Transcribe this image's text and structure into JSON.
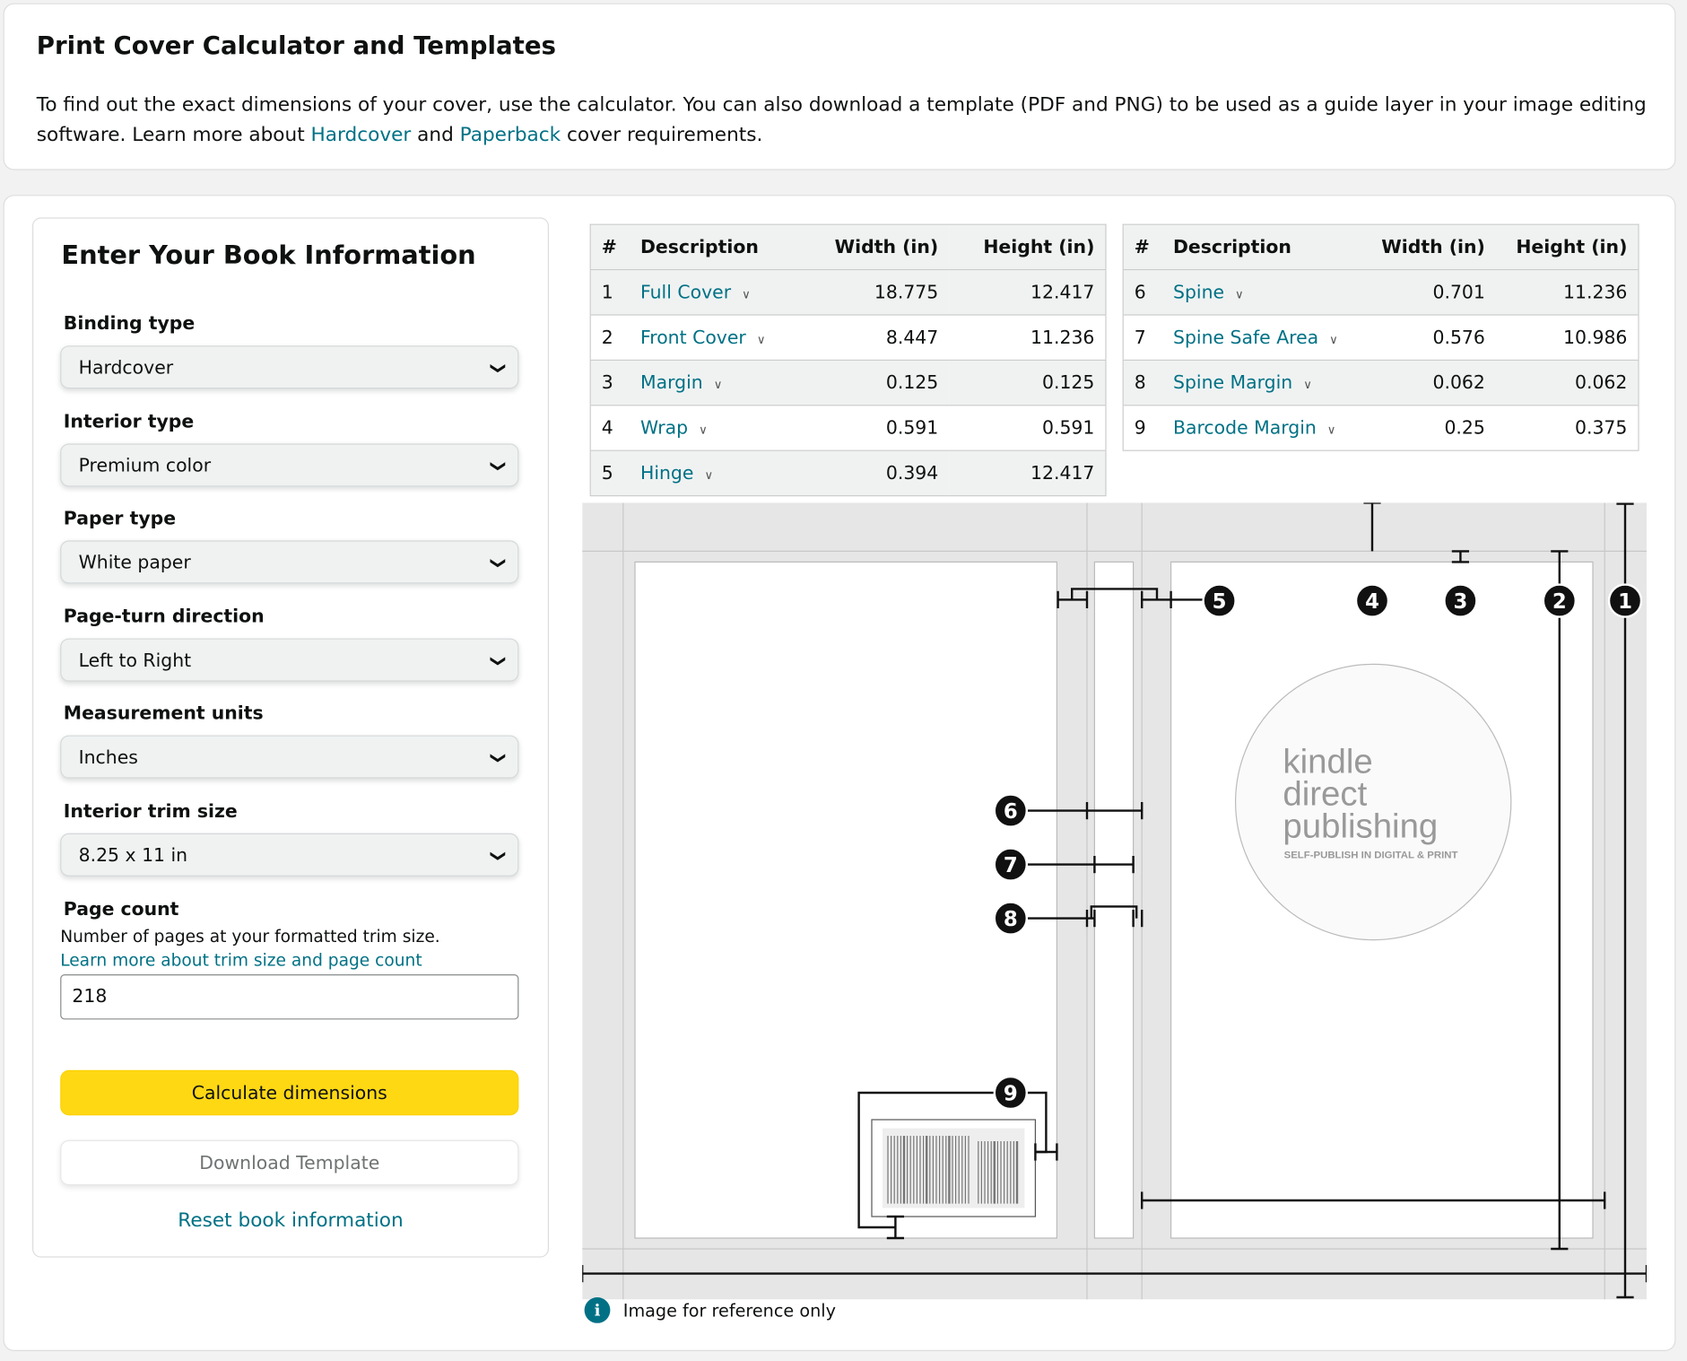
{
  "header": {
    "title": "Print Cover Calculator and Templates",
    "intro_text": "To find out the exact dimensions of your cover, use the calculator. You can also download a template (PDF and PNG) to be used as a guide layer in your image editing software. Learn more about ",
    "hardcover_link": "Hardcover",
    "and_text": " and ",
    "paperback_link": "Paperback",
    "intro_end": " cover requirements."
  },
  "form": {
    "title": "Enter Your Book Information",
    "fields": [
      {
        "label": "Binding type",
        "value": "Hardcover"
      },
      {
        "label": "Interior type",
        "value": "Premium color"
      },
      {
        "label": "Paper type",
        "value": "White paper"
      },
      {
        "label": "Page-turn direction",
        "value": "Left to Right"
      },
      {
        "label": "Measurement units",
        "value": "Inches"
      },
      {
        "label": "Interior trim size",
        "value": "8.25 x 11 in"
      }
    ],
    "page_count": {
      "label": "Page count",
      "help": "Number of pages at your formatted trim size.",
      "link": "Learn more about trim size and page count",
      "value": "218"
    },
    "calculate": "Calculate dimensions",
    "download": "Download Template",
    "reset": "Reset book information"
  },
  "table_headers": {
    "num": "#",
    "description": "Description",
    "width": "Width (in)",
    "height": "Height (in)"
  },
  "table1": [
    {
      "n": "1",
      "d": "Full Cover",
      "w": "18.775",
      "h": "12.417"
    },
    {
      "n": "2",
      "d": "Front Cover",
      "w": "8.447",
      "h": "11.236"
    },
    {
      "n": "3",
      "d": "Margin",
      "w": "0.125",
      "h": "0.125"
    },
    {
      "n": "4",
      "d": "Wrap",
      "w": "0.591",
      "h": "0.591"
    },
    {
      "n": "5",
      "d": "Hinge",
      "w": "0.394",
      "h": "12.417"
    }
  ],
  "table2": [
    {
      "n": "6",
      "d": "Spine",
      "w": "0.701",
      "h": "11.236"
    },
    {
      "n": "7",
      "d": "Spine Safe Area",
      "w": "0.576",
      "h": "10.986"
    },
    {
      "n": "8",
      "d": "Spine Margin",
      "w": "0.062",
      "h": "0.062"
    },
    {
      "n": "9",
      "d": "Barcode Margin",
      "w": "0.25",
      "h": "0.375"
    }
  ],
  "diagram": {
    "logo": {
      "line1": "kindle",
      "line2": "direct",
      "line3": "publishing",
      "tagline": "SELF-PUBLISH IN DIGITAL & PRINT"
    },
    "markers": [
      "1",
      "2",
      "3",
      "4",
      "5",
      "6",
      "7",
      "8",
      "9"
    ]
  },
  "note": {
    "icon": "info-icon",
    "text": "Image for reference only"
  },
  "colors": {
    "link": "#007185",
    "primary_button": "#ffd814"
  }
}
